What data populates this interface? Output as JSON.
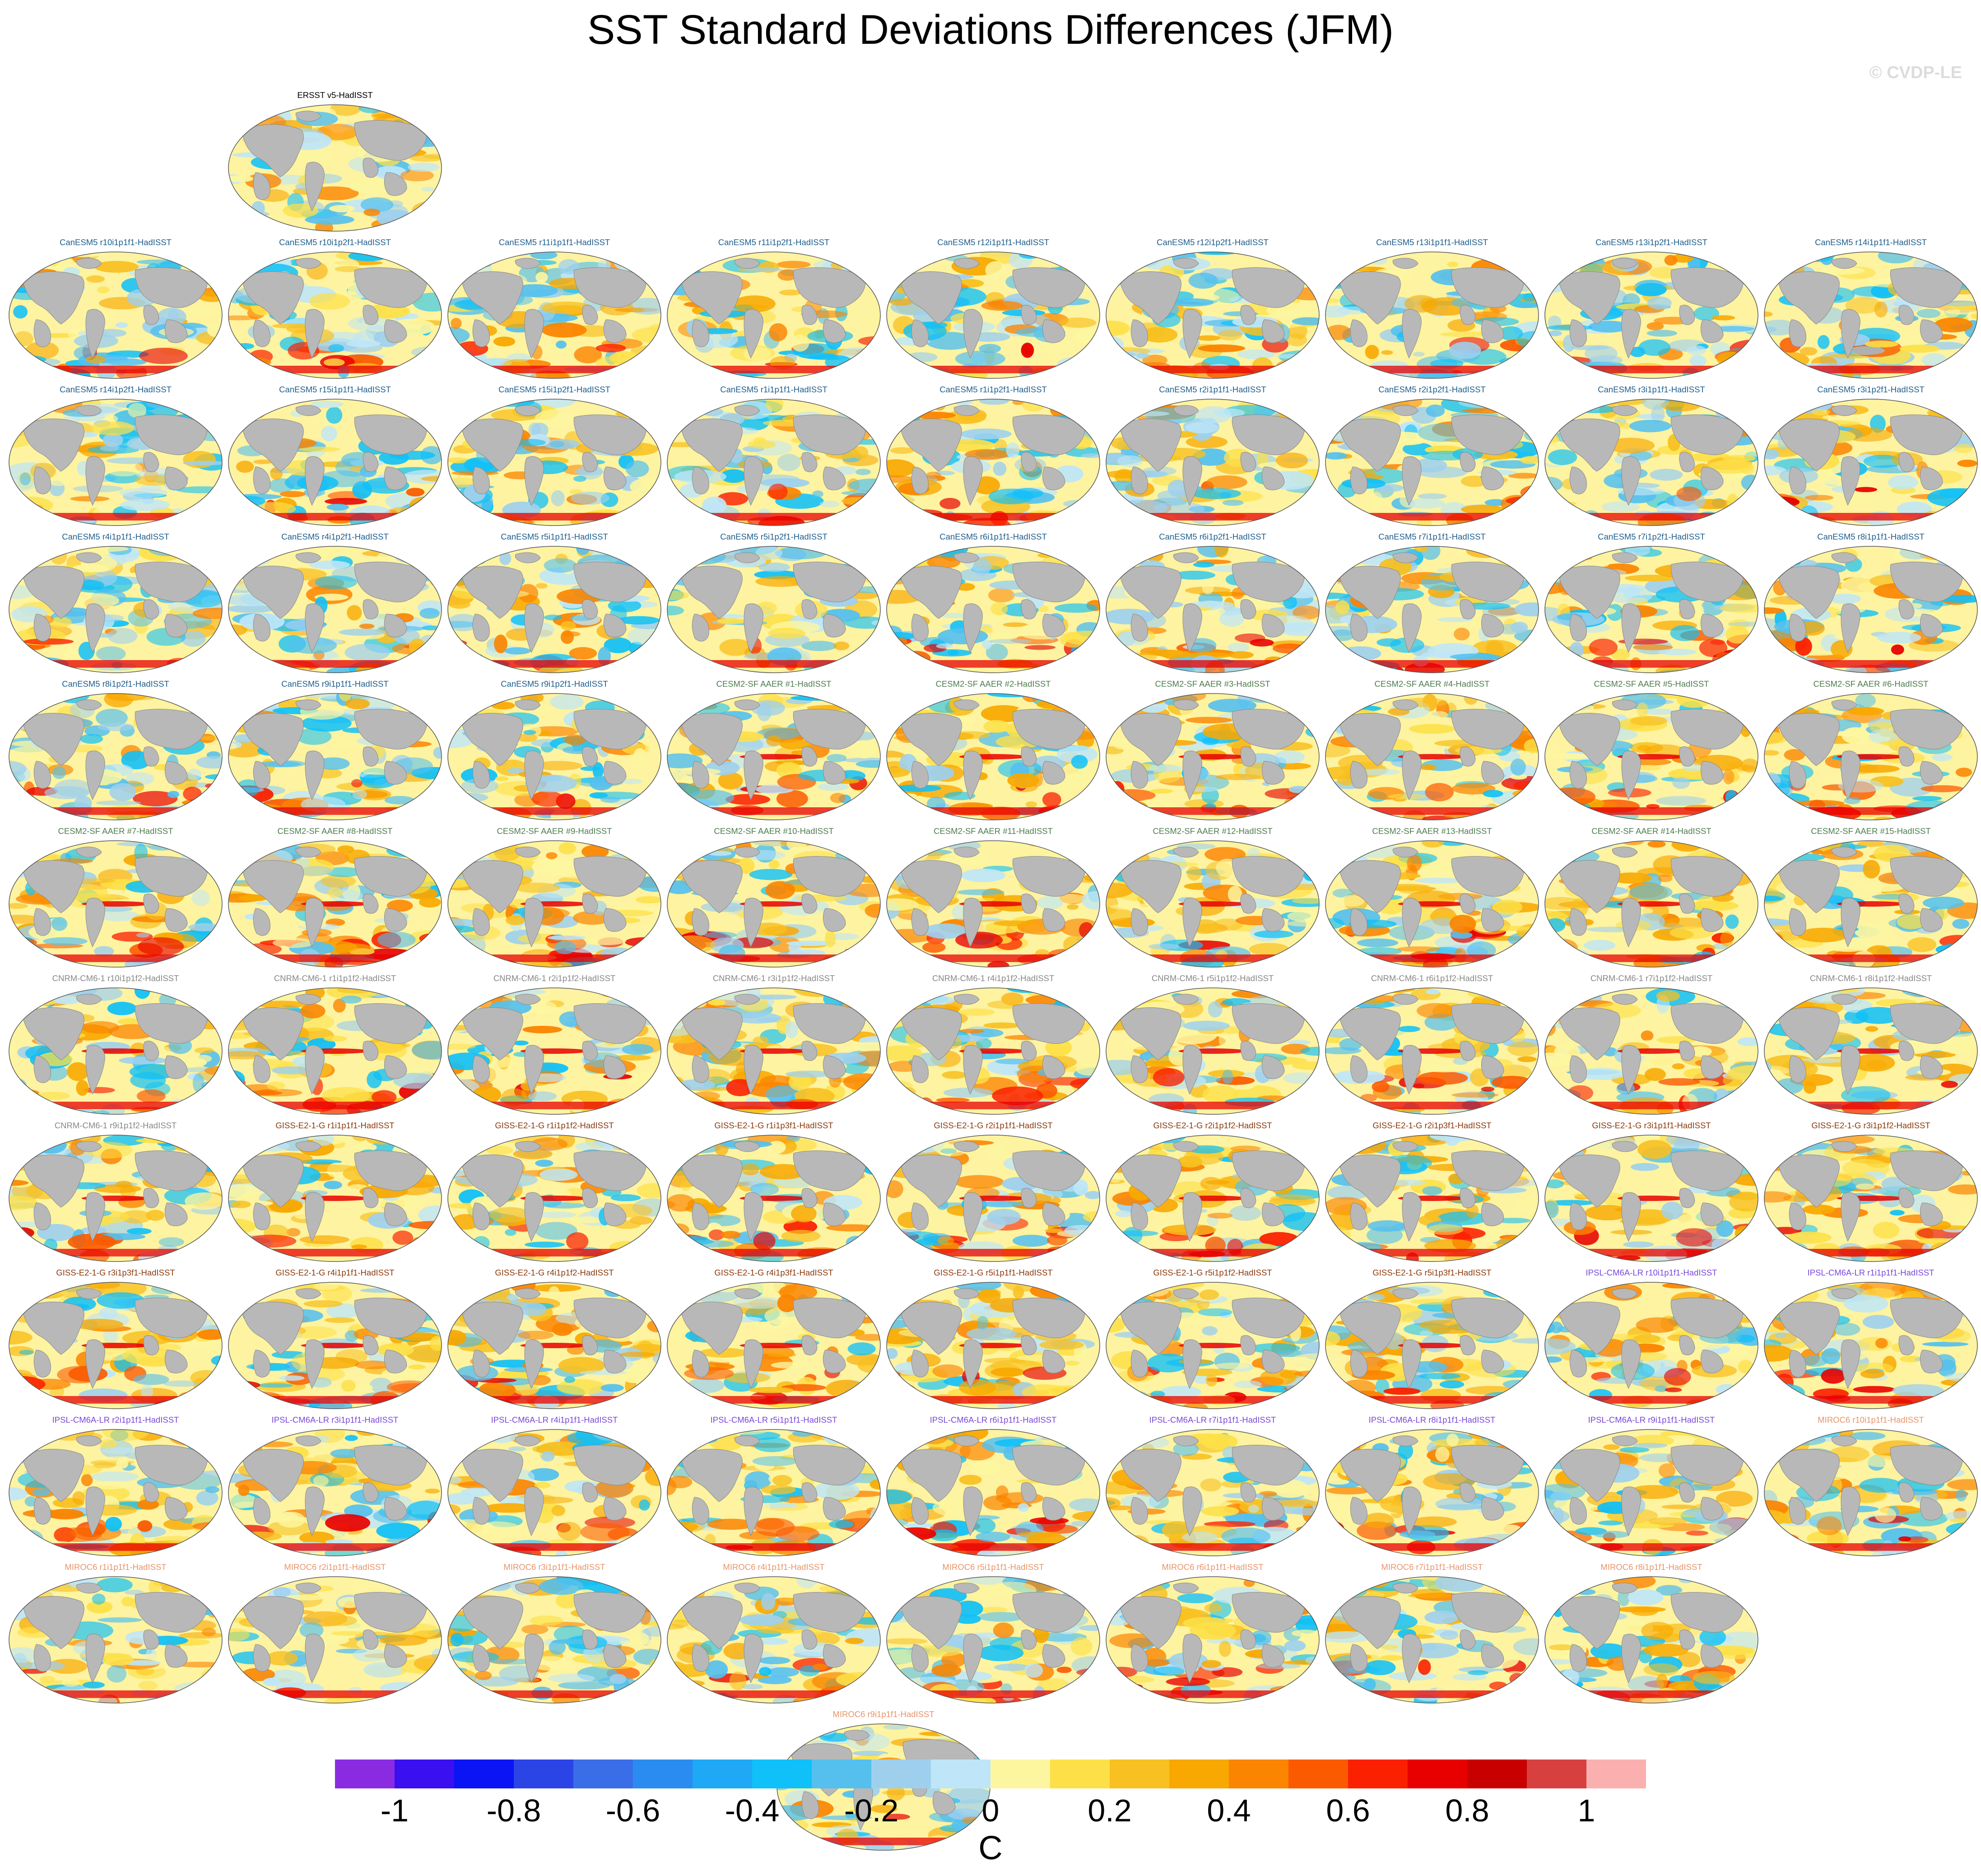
{
  "chart_data": {
    "type": "heatmap",
    "title": "SST Standard Deviations Differences (JFM)",
    "watermark": "© CVDP-LE",
    "projection": "global map panels (Robinson-like), continents grey",
    "colorbar": {
      "units": "C",
      "min": -1.1,
      "max": 1.1,
      "step": 0.1,
      "tick_labels": [
        "-1",
        "-0.8",
        "-0.6",
        "-0.4",
        "-0.2",
        "0",
        "0.2",
        "0.4",
        "0.6",
        "0.8",
        "1"
      ],
      "colors": [
        "#8a2be2",
        "#3a10f0",
        "#0a14f5",
        "#2b44e6",
        "#3a6ee8",
        "#2a8cf0",
        "#1ea8f5",
        "#10c0f8",
        "#55c0ee",
        "#9ed0ee",
        "#bee6f8",
        "#fdf6a0",
        "#fde048",
        "#f8c020",
        "#f8a800",
        "#fb8400",
        "#fb5a00",
        "#fb2000",
        "#e80000",
        "#c80000",
        "#d84040",
        "#fbb0b0"
      ]
    },
    "model_colors": {
      "ERSST": "#000000",
      "CanESM5": "#1f5e8c",
      "CESM2-SF": "#4f7d4f",
      "CNRM-CM6-1": "#888888",
      "GISS-E2-1-G": "#8b3a0e",
      "IPSL-CM6A-LR": "#7a48d8",
      "MIROC6": "#e8946a"
    },
    "panels": [
      {
        "title": "ERSST v5-HadISST",
        "model": "ERSST"
      },
      {
        "title": "CanESM5 r10i1p1f1-HadISST",
        "model": "CanESM5"
      },
      {
        "title": "CanESM5 r10i1p2f1-HadISST",
        "model": "CanESM5"
      },
      {
        "title": "CanESM5 r11i1p1f1-HadISST",
        "model": "CanESM5"
      },
      {
        "title": "CanESM5 r11i1p2f1-HadISST",
        "model": "CanESM5"
      },
      {
        "title": "CanESM5 r12i1p1f1-HadISST",
        "model": "CanESM5"
      },
      {
        "title": "CanESM5 r12i1p2f1-HadISST",
        "model": "CanESM5"
      },
      {
        "title": "CanESM5 r13i1p1f1-HadISST",
        "model": "CanESM5"
      },
      {
        "title": "CanESM5 r13i1p2f1-HadISST",
        "model": "CanESM5"
      },
      {
        "title": "CanESM5 r14i1p1f1-HadISST",
        "model": "CanESM5"
      },
      {
        "title": "CanESM5 r14i1p2f1-HadISST",
        "model": "CanESM5"
      },
      {
        "title": "CanESM5 r15i1p1f1-HadISST",
        "model": "CanESM5"
      },
      {
        "title": "CanESM5 r15i1p2f1-HadISST",
        "model": "CanESM5"
      },
      {
        "title": "CanESM5 r1i1p1f1-HadISST",
        "model": "CanESM5"
      },
      {
        "title": "CanESM5 r1i1p2f1-HadISST",
        "model": "CanESM5"
      },
      {
        "title": "CanESM5 r2i1p1f1-HadISST",
        "model": "CanESM5"
      },
      {
        "title": "CanESM5 r2i1p2f1-HadISST",
        "model": "CanESM5"
      },
      {
        "title": "CanESM5 r3i1p1f1-HadISST",
        "model": "CanESM5"
      },
      {
        "title": "CanESM5 r3i1p2f1-HadISST",
        "model": "CanESM5"
      },
      {
        "title": "CanESM5 r4i1p1f1-HadISST",
        "model": "CanESM5"
      },
      {
        "title": "CanESM5 r4i1p2f1-HadISST",
        "model": "CanESM5"
      },
      {
        "title": "CanESM5 r5i1p1f1-HadISST",
        "model": "CanESM5"
      },
      {
        "title": "CanESM5 r5i1p2f1-HadISST",
        "model": "CanESM5"
      },
      {
        "title": "CanESM5 r6i1p1f1-HadISST",
        "model": "CanESM5"
      },
      {
        "title": "CanESM5 r6i1p2f1-HadISST",
        "model": "CanESM5"
      },
      {
        "title": "CanESM5 r7i1p1f1-HadISST",
        "model": "CanESM5"
      },
      {
        "title": "CanESM5 r7i1p2f1-HadISST",
        "model": "CanESM5"
      },
      {
        "title": "CanESM5 r8i1p1f1-HadISST",
        "model": "CanESM5"
      },
      {
        "title": "CanESM5 r8i1p2f1-HadISST",
        "model": "CanESM5"
      },
      {
        "title": "CanESM5 r9i1p1f1-HadISST",
        "model": "CanESM5"
      },
      {
        "title": "CanESM5 r9i1p2f1-HadISST",
        "model": "CanESM5"
      },
      {
        "title": "CESM2-SF AAER #1-HadISST",
        "model": "CESM2-SF"
      },
      {
        "title": "CESM2-SF AAER #2-HadISST",
        "model": "CESM2-SF"
      },
      {
        "title": "CESM2-SF AAER #3-HadISST",
        "model": "CESM2-SF"
      },
      {
        "title": "CESM2-SF AAER #4-HadISST",
        "model": "CESM2-SF"
      },
      {
        "title": "CESM2-SF AAER #5-HadISST",
        "model": "CESM2-SF"
      },
      {
        "title": "CESM2-SF AAER #6-HadISST",
        "model": "CESM2-SF"
      },
      {
        "title": "CESM2-SF AAER #7-HadISST",
        "model": "CESM2-SF"
      },
      {
        "title": "CESM2-SF AAER #8-HadISST",
        "model": "CESM2-SF"
      },
      {
        "title": "CESM2-SF AAER #9-HadISST",
        "model": "CESM2-SF"
      },
      {
        "title": "CESM2-SF AAER #10-HadISST",
        "model": "CESM2-SF"
      },
      {
        "title": "CESM2-SF AAER #11-HadISST",
        "model": "CESM2-SF"
      },
      {
        "title": "CESM2-SF AAER #12-HadISST",
        "model": "CESM2-SF"
      },
      {
        "title": "CESM2-SF AAER #13-HadISST",
        "model": "CESM2-SF"
      },
      {
        "title": "CESM2-SF AAER #14-HadISST",
        "model": "CESM2-SF"
      },
      {
        "title": "CESM2-SF AAER #15-HadISST",
        "model": "CESM2-SF"
      },
      {
        "title": "CNRM-CM6-1 r10i1p1f2-HadISST",
        "model": "CNRM-CM6-1"
      },
      {
        "title": "CNRM-CM6-1 r1i1p1f2-HadISST",
        "model": "CNRM-CM6-1"
      },
      {
        "title": "CNRM-CM6-1 r2i1p1f2-HadISST",
        "model": "CNRM-CM6-1"
      },
      {
        "title": "CNRM-CM6-1 r3i1p1f2-HadISST",
        "model": "CNRM-CM6-1"
      },
      {
        "title": "CNRM-CM6-1 r4i1p1f2-HadISST",
        "model": "CNRM-CM6-1"
      },
      {
        "title": "CNRM-CM6-1 r5i1p1f2-HadISST",
        "model": "CNRM-CM6-1"
      },
      {
        "title": "CNRM-CM6-1 r6i1p1f2-HadISST",
        "model": "CNRM-CM6-1"
      },
      {
        "title": "CNRM-CM6-1 r7i1p1f2-HadISST",
        "model": "CNRM-CM6-1"
      },
      {
        "title": "CNRM-CM6-1 r8i1p1f2-HadISST",
        "model": "CNRM-CM6-1"
      },
      {
        "title": "CNRM-CM6-1 r9i1p1f2-HadISST",
        "model": "CNRM-CM6-1"
      },
      {
        "title": "GISS-E2-1-G r1i1p1f1-HadISST",
        "model": "GISS-E2-1-G"
      },
      {
        "title": "GISS-E2-1-G r1i1p1f2-HadISST",
        "model": "GISS-E2-1-G"
      },
      {
        "title": "GISS-E2-1-G r1i1p3f1-HadISST",
        "model": "GISS-E2-1-G"
      },
      {
        "title": "GISS-E2-1-G r2i1p1f1-HadISST",
        "model": "GISS-E2-1-G"
      },
      {
        "title": "GISS-E2-1-G r2i1p1f2-HadISST",
        "model": "GISS-E2-1-G"
      },
      {
        "title": "GISS-E2-1-G r2i1p3f1-HadISST",
        "model": "GISS-E2-1-G"
      },
      {
        "title": "GISS-E2-1-G r3i1p1f1-HadISST",
        "model": "GISS-E2-1-G"
      },
      {
        "title": "GISS-E2-1-G r3i1p1f2-HadISST",
        "model": "GISS-E2-1-G"
      },
      {
        "title": "GISS-E2-1-G r3i1p3f1-HadISST",
        "model": "GISS-E2-1-G"
      },
      {
        "title": "GISS-E2-1-G r4i1p1f1-HadISST",
        "model": "GISS-E2-1-G"
      },
      {
        "title": "GISS-E2-1-G r4i1p1f2-HadISST",
        "model": "GISS-E2-1-G"
      },
      {
        "title": "GISS-E2-1-G r4i1p3f1-HadISST",
        "model": "GISS-E2-1-G"
      },
      {
        "title": "GISS-E2-1-G r5i1p1f1-HadISST",
        "model": "GISS-E2-1-G"
      },
      {
        "title": "GISS-E2-1-G r5i1p1f2-HadISST",
        "model": "GISS-E2-1-G"
      },
      {
        "title": "GISS-E2-1-G r5i1p3f1-HadISST",
        "model": "GISS-E2-1-G"
      },
      {
        "title": "IPSL-CM6A-LR r10i1p1f1-HadISST",
        "model": "IPSL-CM6A-LR"
      },
      {
        "title": "IPSL-CM6A-LR r1i1p1f1-HadISST",
        "model": "IPSL-CM6A-LR"
      },
      {
        "title": "IPSL-CM6A-LR r2i1p1f1-HadISST",
        "model": "IPSL-CM6A-LR"
      },
      {
        "title": "IPSL-CM6A-LR r3i1p1f1-HadISST",
        "model": "IPSL-CM6A-LR"
      },
      {
        "title": "IPSL-CM6A-LR r4i1p1f1-HadISST",
        "model": "IPSL-CM6A-LR"
      },
      {
        "title": "IPSL-CM6A-LR r5i1p1f1-HadISST",
        "model": "IPSL-CM6A-LR"
      },
      {
        "title": "IPSL-CM6A-LR r6i1p1f1-HadISST",
        "model": "IPSL-CM6A-LR"
      },
      {
        "title": "IPSL-CM6A-LR r7i1p1f1-HadISST",
        "model": "IPSL-CM6A-LR"
      },
      {
        "title": "IPSL-CM6A-LR r8i1p1f1-HadISST",
        "model": "IPSL-CM6A-LR"
      },
      {
        "title": "IPSL-CM6A-LR r9i1p1f1-HadISST",
        "model": "IPSL-CM6A-LR"
      },
      {
        "title": "MIROC6 r10i1p1f1-HadISST",
        "model": "MIROC6"
      },
      {
        "title": "MIROC6 r1i1p1f1-HadISST",
        "model": "MIROC6"
      },
      {
        "title": "MIROC6 r2i1p1f1-HadISST",
        "model": "MIROC6"
      },
      {
        "title": "MIROC6 r3i1p1f1-HadISST",
        "model": "MIROC6"
      },
      {
        "title": "MIROC6 r4i1p1f1-HadISST",
        "model": "MIROC6"
      },
      {
        "title": "MIROC6 r5i1p1f1-HadISST",
        "model": "MIROC6"
      },
      {
        "title": "MIROC6 r6i1p1f1-HadISST",
        "model": "MIROC6"
      },
      {
        "title": "MIROC6 r7i1p1f1-HadISST",
        "model": "MIROC6"
      },
      {
        "title": "MIROC6 r8i1p1f1-HadISST",
        "model": "MIROC6"
      },
      {
        "title": "MIROC6 r9i1p1f1-HadISST",
        "model": "MIROC6"
      }
    ]
  }
}
